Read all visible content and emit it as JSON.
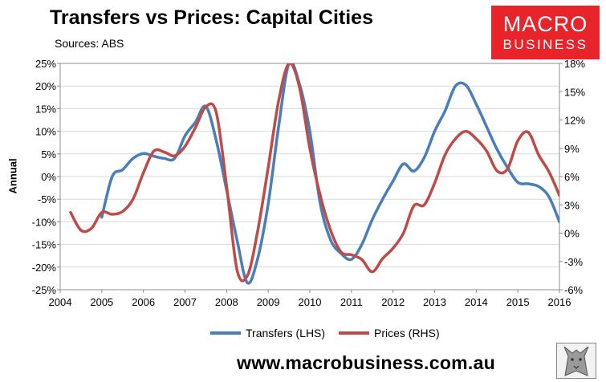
{
  "header": {
    "title": "Transfers vs Prices: Capital Cities",
    "source": "Sources: ABS"
  },
  "logo": {
    "line1": "MACRO",
    "line2": "BUSINESS",
    "color": "#e8232a"
  },
  "footer": {
    "url": "www.macrobusiness.com.au"
  },
  "chart_data": {
    "type": "line",
    "title": "Transfers vs Prices: Capital Cities",
    "subtitle": "Sources: ABS",
    "ylabel": "Annual",
    "xlim": [
      2004,
      2016
    ],
    "ylim": [
      -25,
      25
    ],
    "y2lim": [
      -6,
      18
    ],
    "x_ticks": [
      2004,
      2005,
      2006,
      2007,
      2008,
      2009,
      2010,
      2011,
      2012,
      2013,
      2014,
      2015,
      2016
    ],
    "x_tick_labels": [
      "2004",
      "2005",
      "2006",
      "2007",
      "2008",
      "2009",
      "2010",
      "2011",
      "2012",
      "2013",
      "2014",
      "2015",
      "2016"
    ],
    "y_ticks": [
      -25,
      -20,
      -15,
      -10,
      -5,
      0,
      5,
      10,
      15,
      20,
      25
    ],
    "y_tick_labels": [
      "-25%",
      "-20%",
      "-15%",
      "-10%",
      "-5%",
      "0%",
      "5%",
      "10%",
      "15%",
      "20%",
      "25%"
    ],
    "y2_ticks": [
      -6,
      -3,
      0,
      3,
      6,
      9,
      12,
      15,
      18
    ],
    "y2_tick_labels": [
      "-6%",
      "-3%",
      "0%",
      "3%",
      "6%",
      "9%",
      "12%",
      "15%",
      "18%"
    ],
    "grid": "horizontal",
    "legend": "bottom",
    "series": [
      {
        "name": "Transfers (LHS)",
        "axis": "left",
        "color": "#4a7ebb",
        "x": [
          2005.0,
          2005.25,
          2005.5,
          2005.75,
          2006.0,
          2006.25,
          2006.5,
          2006.75,
          2007.0,
          2007.25,
          2007.5,
          2007.75,
          2008.0,
          2008.25,
          2008.5,
          2008.75,
          2009.0,
          2009.25,
          2009.5,
          2009.75,
          2010.0,
          2010.25,
          2010.5,
          2010.75,
          2011.0,
          2011.25,
          2011.5,
          2011.75,
          2012.0,
          2012.25,
          2012.5,
          2012.75,
          2013.0,
          2013.25,
          2013.5,
          2013.75,
          2014.0,
          2014.25,
          2014.5,
          2014.75,
          2015.0,
          2015.25,
          2015.5,
          2015.75,
          2016.0
        ],
        "values": [
          -9,
          0,
          1.5,
          4,
          5.1,
          4.5,
          4,
          4,
          9,
          12,
          15.5,
          8,
          -3,
          -14,
          -23.5,
          -18,
          -6,
          11,
          25,
          20.5,
          10,
          -6,
          -14,
          -17,
          -18.3,
          -15,
          -9.5,
          -5,
          -1,
          2.8,
          1.2,
          4.2,
          10,
          14.5,
          20,
          20.2,
          16,
          11,
          6,
          2,
          -1.3,
          -1.6,
          -2.2,
          -4.5,
          -10
        ]
      },
      {
        "name": "Prices (RHS)",
        "axis": "right",
        "color": "#be4b48",
        "x": [
          2004.25,
          2004.5,
          2004.75,
          2005.0,
          2005.25,
          2005.5,
          2005.75,
          2006.0,
          2006.25,
          2006.5,
          2006.75,
          2007.0,
          2007.25,
          2007.5,
          2007.75,
          2008.0,
          2008.25,
          2008.5,
          2008.75,
          2009.0,
          2009.25,
          2009.5,
          2009.75,
          2010.0,
          2010.25,
          2010.5,
          2010.75,
          2011.0,
          2011.25,
          2011.5,
          2011.75,
          2012.0,
          2012.25,
          2012.5,
          2012.75,
          2013.0,
          2013.25,
          2013.5,
          2013.75,
          2014.0,
          2014.25,
          2014.5,
          2014.75,
          2015.0,
          2015.25,
          2015.5,
          2015.75,
          2016.0
        ],
        "values": [
          2.2,
          0.3,
          0.5,
          2.2,
          2.0,
          2.3,
          3.6,
          6.4,
          8.7,
          8.6,
          8.2,
          9.2,
          11.2,
          13.4,
          12.8,
          5.0,
          -3.9,
          -4.5,
          0.3,
          7.0,
          14.0,
          18.0,
          15.5,
          9.0,
          4.0,
          0.3,
          -2.0,
          -2.3,
          -2.8,
          -4.1,
          -2.7,
          -1.6,
          0.0,
          2.9,
          3.0,
          5.3,
          8.3,
          10.0,
          10.8,
          10.0,
          8.7,
          6.6,
          6.8,
          9.8,
          10.7,
          8.3,
          6.5,
          4.0
        ]
      }
    ]
  }
}
